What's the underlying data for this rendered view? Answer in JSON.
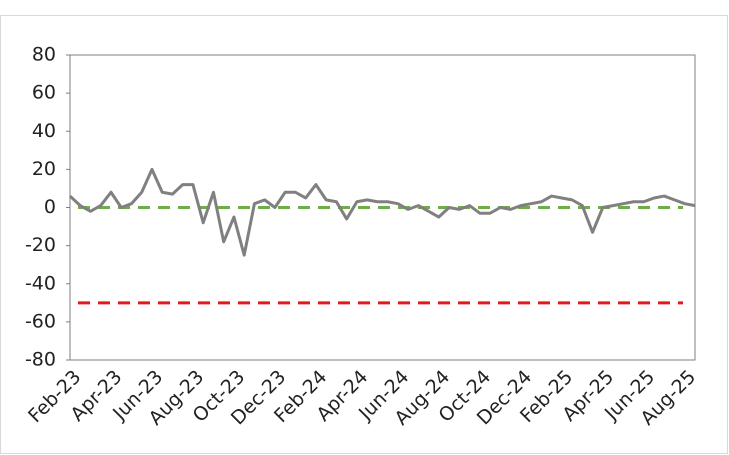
{
  "chart_data": {
    "type": "line",
    "categories": [
      "Feb-23",
      null,
      null,
      null,
      "Apr-23",
      null,
      null,
      null,
      "Jun-23",
      null,
      null,
      null,
      "Aug-23",
      null,
      null,
      null,
      "Oct-23",
      null,
      null,
      null,
      "Dec-23",
      null,
      null,
      null,
      "Feb-24",
      null,
      null,
      null,
      "Apr-24",
      null,
      null,
      null,
      "Jun-24",
      null,
      null,
      null,
      "Aug-24",
      null,
      null,
      null,
      "Oct-24",
      null,
      null,
      null,
      "Dec-24",
      null,
      null,
      null,
      "Feb-25",
      null,
      null,
      null,
      "Apr-25",
      null,
      null,
      null,
      "Jun-25",
      null,
      null,
      null,
      "Aug-25",
      null
    ],
    "series": [
      {
        "color": "#808080",
        "values": [
          6,
          1,
          -2,
          1,
          8,
          0,
          2,
          8,
          20,
          8,
          7,
          12,
          12,
          -8,
          8,
          -18,
          -5,
          -25,
          2,
          4,
          0,
          8,
          8,
          5,
          12,
          4,
          3,
          -6,
          3,
          4,
          3,
          3,
          2,
          -1,
          1,
          -2,
          -5,
          0,
          -1,
          1,
          -3,
          -3,
          0,
          -1,
          1,
          2,
          3,
          6,
          5,
          4,
          1,
          -13,
          0,
          1,
          2,
          3,
          3,
          5,
          6,
          4,
          2,
          1
        ]
      }
    ],
    "reference_lines": [
      {
        "value": 0,
        "color": "#70ad47"
      },
      {
        "value": -50,
        "color": "#e31a1c"
      }
    ],
    "ylim": [
      -80,
      80
    ],
    "yticks": [
      -80,
      -60,
      -40,
      -20,
      0,
      20,
      40,
      60,
      80
    ],
    "grid": false
  }
}
